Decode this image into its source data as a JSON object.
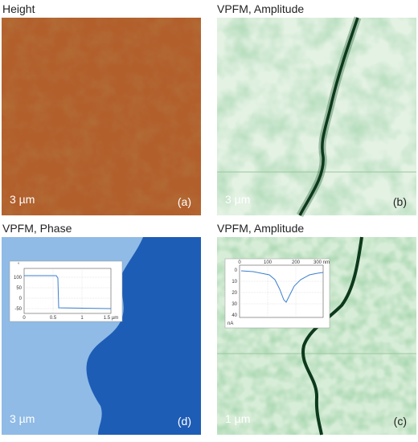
{
  "panels": [
    {
      "title": "Height",
      "scale": "3 µm",
      "label": "(a)"
    },
    {
      "title": "VPFM, Amplitude",
      "scale": "3 µm",
      "label": "(b)"
    },
    {
      "title": "VPFM, Phase",
      "scale": "3 µm",
      "label": "(d)",
      "inset": {
        "y_unit": "°",
        "yticks": [
          "100",
          "50",
          "0",
          "-50"
        ],
        "xticks": [
          "0",
          "0.5",
          "1",
          "1.5 µm"
        ]
      }
    },
    {
      "title": "VPFM, Amplitude",
      "scale": "1 µm",
      "label": "(c)",
      "inset": {
        "y_unit": "nA",
        "yticks": [
          "0",
          "10",
          "20",
          "30",
          "40"
        ],
        "xticks": [
          "0",
          "100",
          "200",
          "300 nm"
        ]
      }
    }
  ]
}
